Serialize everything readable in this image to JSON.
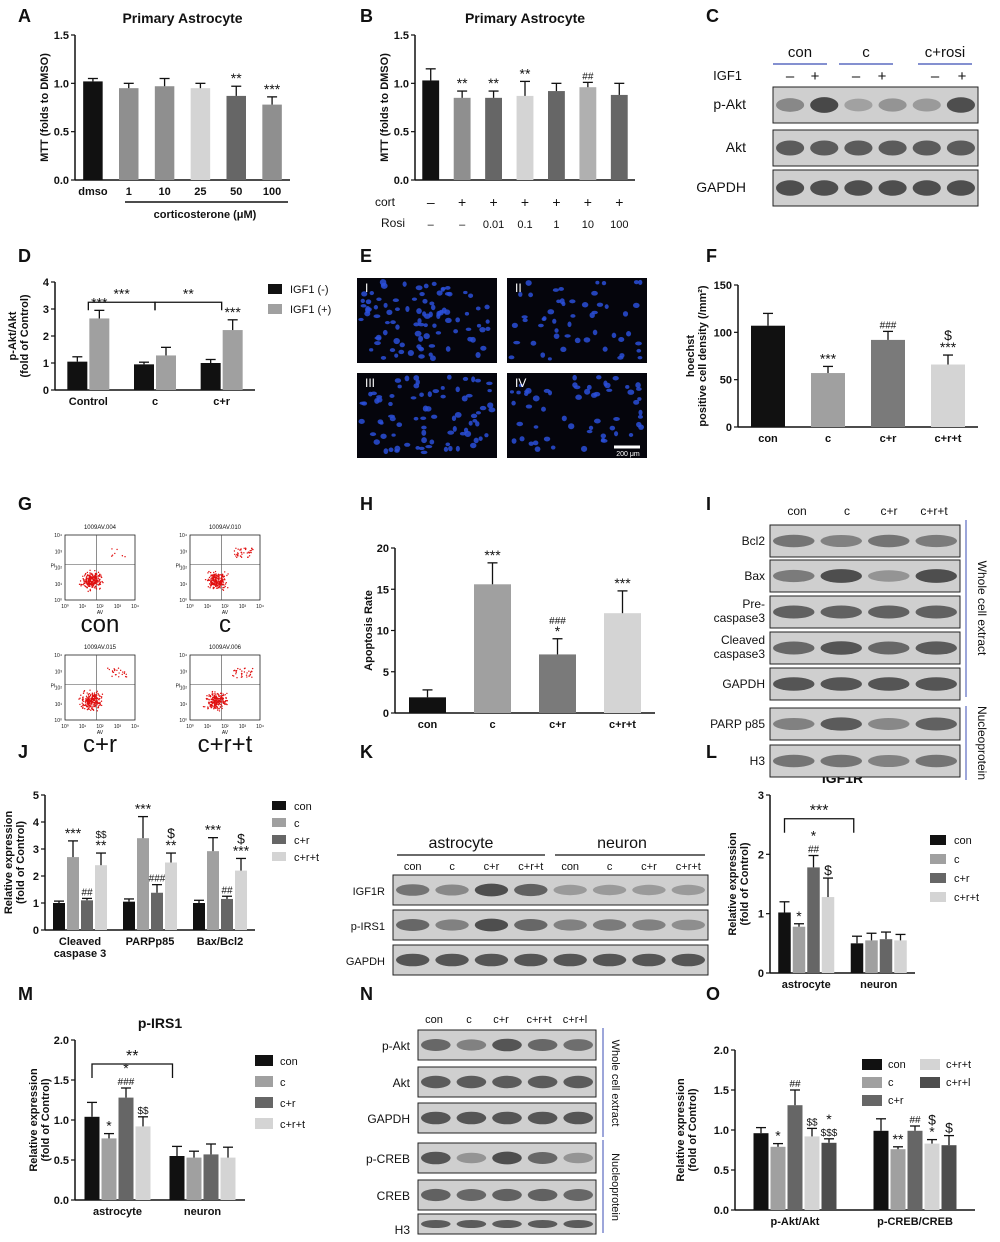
{
  "panels": {
    "A": {
      "label": "A"
    },
    "B": {
      "label": "B"
    },
    "C": {
      "label": "C"
    },
    "D": {
      "label": "D"
    },
    "E": {
      "label": "E"
    },
    "F": {
      "label": "F"
    },
    "G": {
      "label": "G"
    },
    "H": {
      "label": "H"
    },
    "I": {
      "label": "I"
    },
    "J": {
      "label": "J"
    },
    "K": {
      "label": "K"
    },
    "L": {
      "label": "L"
    },
    "M": {
      "label": "M"
    },
    "N": {
      "label": "N"
    },
    "O": {
      "label": "O"
    }
  },
  "colors": {
    "black": "#111111",
    "dgray": "#666666",
    "mgray": "#8f8f8f",
    "lgray": "#d4d4d4",
    "dark2": "#4d4d4d"
  },
  "chart_data": [
    {
      "id": "A",
      "type": "bar",
      "title": "Primary Astrocyte",
      "ylabel": "MTT (folds to DMSO)",
      "xlabel": "corticosterone (μM)",
      "categories": [
        "dmso",
        "1",
        "10",
        "25",
        "50",
        "100"
      ],
      "values": [
        1.02,
        0.95,
        0.97,
        0.95,
        0.87,
        0.78
      ],
      "errors": [
        0.03,
        0.05,
        0.08,
        0.05,
        0.1,
        0.08
      ],
      "colors": [
        "#111111",
        "#8f8f8f",
        "#8f8f8f",
        "#d4d4d4",
        "#666666",
        "#8f8f8f"
      ],
      "sig": [
        "",
        "",
        "",
        "",
        "**",
        "***"
      ],
      "ylim": [
        0,
        1.5
      ],
      "yticks": [
        "0.0",
        "0.5",
        "1.0",
        "1.5"
      ]
    },
    {
      "id": "B",
      "type": "bar",
      "title": "Primary Astrocyte",
      "ylabel": "MTT (folds to DMSO)",
      "categories": [
        "",
        "",
        "",
        "",
        "",
        "",
        ""
      ],
      "row_labels": [
        "cort",
        "Rosi"
      ],
      "cort": [
        "–",
        "+",
        "+",
        "+",
        "+",
        "+",
        "+"
      ],
      "rosi": [
        "–",
        "–",
        "0.01",
        "0.1",
        "1",
        "10",
        "100"
      ],
      "values": [
        1.03,
        0.85,
        0.85,
        0.87,
        0.92,
        0.96,
        0.88
      ],
      "errors": [
        0.12,
        0.07,
        0.07,
        0.15,
        0.08,
        0.05,
        0.12
      ],
      "colors": [
        "#111111",
        "#8f8f8f",
        "#666666",
        "#d4d4d4",
        "#666666",
        "#b0b0b0",
        "#666666"
      ],
      "sig": [
        "",
        "**",
        "**",
        "**",
        "",
        "##",
        ""
      ],
      "ylim": [
        0,
        1.5
      ],
      "yticks": [
        "0.0",
        "0.5",
        "1.0",
        "1.5"
      ]
    },
    {
      "id": "D",
      "type": "bar",
      "ylabel": "p-Akt/Akt\n(fold of Control)",
      "categories": [
        "Control",
        "c",
        "c+r"
      ],
      "series": [
        {
          "name": "IGF1 (-)",
          "color": "#111111",
          "values": [
            1.05,
            0.95,
            1.0
          ],
          "errors": [
            0.18,
            0.08,
            0.13
          ],
          "sig": [
            "",
            "",
            ""
          ]
        },
        {
          "name": "IGF1 (+)",
          "color": "#a0a0a0",
          "values": [
            2.65,
            1.28,
            2.22
          ],
          "errors": [
            0.3,
            0.3,
            0.38
          ],
          "sig": [
            "***",
            "",
            "***"
          ]
        }
      ],
      "brackets": [
        {
          "from": [
            0,
            1
          ],
          "to": [
            1,
            1
          ],
          "label": "***"
        },
        {
          "from": [
            1,
            1
          ],
          "to": [
            2,
            1
          ],
          "label": "**"
        }
      ],
      "ylim": [
        0,
        4
      ],
      "yticks": [
        "0",
        "1",
        "2",
        "3",
        "4"
      ]
    },
    {
      "id": "F",
      "type": "bar",
      "ylabel": "hoechst\npositive cell density (/mm²)",
      "categories": [
        "con",
        "c",
        "c+r",
        "c+r+t"
      ],
      "values": [
        107,
        57,
        92,
        66
      ],
      "errors": [
        13,
        7,
        9,
        10
      ],
      "colors": [
        "#111111",
        "#a0a0a0",
        "#7a7a7a",
        "#d4d4d4"
      ],
      "sig": [
        "",
        "***",
        "###",
        "$\n***"
      ],
      "ylim": [
        0,
        150
      ],
      "yticks": [
        "0",
        "50",
        "100",
        "150"
      ]
    },
    {
      "id": "H",
      "type": "bar",
      "ylabel": "Apoptosis Rate",
      "categories": [
        "con",
        "c",
        "c+r",
        "c+r+t"
      ],
      "values": [
        1.9,
        15.6,
        7.1,
        12.1
      ],
      "errors": [
        0.9,
        2.6,
        1.9,
        2.7
      ],
      "colors": [
        "#111111",
        "#a0a0a0",
        "#7a7a7a",
        "#d4d4d4"
      ],
      "sig": [
        "",
        "***",
        "###\n*",
        "***"
      ],
      "ylim": [
        0,
        20
      ],
      "yticks": [
        "0",
        "5",
        "10",
        "15",
        "20"
      ]
    },
    {
      "id": "J",
      "type": "bar",
      "ylabel": "Relative expression\n(fold of Control)",
      "categories": [
        "Cleaved\ncaspase 3",
        "PARPp85",
        "Bax/Bcl2"
      ],
      "series": [
        {
          "name": "con",
          "color": "#111111",
          "values": [
            1.0,
            1.05,
            1.0
          ],
          "errors": [
            0.07,
            0.1,
            0.1
          ],
          "sig": [
            "",
            "",
            ""
          ]
        },
        {
          "name": "c",
          "color": "#a0a0a0",
          "values": [
            2.7,
            3.4,
            2.92
          ],
          "errors": [
            0.6,
            0.8,
            0.5
          ],
          "sig": [
            "***",
            "***",
            "***"
          ]
        },
        {
          "name": "c+r",
          "color": "#666666",
          "values": [
            1.1,
            1.38,
            1.15
          ],
          "errors": [
            0.07,
            0.3,
            0.1
          ],
          "sig": [
            "##",
            "###",
            "##"
          ]
        },
        {
          "name": "c+r+t",
          "color": "#d4d4d4",
          "values": [
            2.4,
            2.5,
            2.2
          ],
          "errors": [
            0.45,
            0.35,
            0.45
          ],
          "sig": [
            "$$\n**",
            "$\n**",
            "$\n***"
          ]
        }
      ],
      "ylim": [
        0,
        5
      ],
      "yticks": [
        "0",
        "1",
        "2",
        "3",
        "4",
        "5"
      ]
    },
    {
      "id": "L",
      "type": "bar",
      "title": "IGF1R",
      "ylabel": "Relative expression\n(fold of Control)",
      "categories": [
        "astrocyte",
        "neuron"
      ],
      "series": [
        {
          "name": "con",
          "color": "#111111",
          "values": [
            1.02,
            0.5
          ],
          "errors": [
            0.18,
            0.12
          ],
          "sig": [
            "",
            ""
          ]
        },
        {
          "name": "c",
          "color": "#a0a0a0",
          "values": [
            0.78,
            0.55
          ],
          "errors": [
            0.05,
            0.12
          ],
          "sig": [
            "*",
            ""
          ]
        },
        {
          "name": "c+r",
          "color": "#666666",
          "values": [
            1.78,
            0.57
          ],
          "errors": [
            0.2,
            0.12
          ],
          "sig": [
            "*\n##",
            ""
          ]
        },
        {
          "name": "c+r+t",
          "color": "#d4d4d4",
          "values": [
            1.28,
            0.55
          ],
          "errors": [
            0.32,
            0.1
          ],
          "sig": [
            "$",
            ""
          ]
        }
      ],
      "brackets": [
        {
          "label": "***"
        }
      ],
      "ylim": [
        0,
        3
      ],
      "yticks": [
        "0",
        "1",
        "2",
        "3"
      ]
    },
    {
      "id": "M",
      "type": "bar",
      "title": "p-IRS1",
      "ylabel": "Relative expression\n(fold of Control)",
      "categories": [
        "astrocyte",
        "neuron"
      ],
      "series": [
        {
          "name": "con",
          "color": "#111111",
          "values": [
            1.04,
            0.55
          ],
          "errors": [
            0.18,
            0.12
          ],
          "sig": [
            "",
            ""
          ]
        },
        {
          "name": "c",
          "color": "#a0a0a0",
          "values": [
            0.77,
            0.53
          ],
          "errors": [
            0.06,
            0.08
          ],
          "sig": [
            "*",
            ""
          ]
        },
        {
          "name": "c+r",
          "color": "#666666",
          "values": [
            1.28,
            0.57
          ],
          "errors": [
            0.12,
            0.13
          ],
          "sig": [
            "*\n###",
            ""
          ]
        },
        {
          "name": "c+r+t",
          "color": "#d4d4d4",
          "values": [
            0.92,
            0.53
          ],
          "errors": [
            0.12,
            0.13
          ],
          "sig": [
            "$$",
            ""
          ]
        }
      ],
      "brackets": [
        {
          "label": "**"
        }
      ],
      "ylim": [
        0,
        2.0
      ],
      "yticks": [
        "0.0",
        "0.5",
        "1.0",
        "1.5",
        "2.0"
      ]
    },
    {
      "id": "O",
      "type": "bar",
      "ylabel": "Relative expression\n(fold of Control)",
      "categories": [
        "p-Akt/Akt",
        "p-CREB/CREB"
      ],
      "series": [
        {
          "name": "con",
          "color": "#111111",
          "values": [
            0.96,
            0.99
          ],
          "errors": [
            0.07,
            0.15
          ],
          "sig": [
            "",
            ""
          ]
        },
        {
          "name": "c",
          "color": "#a0a0a0",
          "values": [
            0.79,
            0.76
          ],
          "errors": [
            0.04,
            0.03
          ],
          "sig": [
            "*",
            "**"
          ]
        },
        {
          "name": "c+r",
          "color": "#666666",
          "values": [
            1.31,
            0.99
          ],
          "errors": [
            0.19,
            0.06
          ],
          "sig": [
            "##",
            "##"
          ]
        },
        {
          "name": "c+r+t",
          "color": "#d4d4d4",
          "values": [
            0.92,
            0.83
          ],
          "errors": [
            0.1,
            0.05
          ],
          "sig": [
            "$$",
            "$\n*"
          ]
        },
        {
          "name": "c+r+l",
          "color": "#4d4d4d",
          "values": [
            0.84,
            0.81
          ],
          "errors": [
            0.05,
            0.12
          ],
          "sig": [
            "*\n$$$",
            "$"
          ]
        }
      ],
      "ylim": [
        0,
        2.0
      ],
      "yticks": [
        "0.0",
        "0.5",
        "1.0",
        "1.5",
        "2.0"
      ]
    }
  ],
  "blots": {
    "C": {
      "groups": [
        "con",
        "c",
        "c+rosi"
      ],
      "igf_label": "IGF1",
      "signs": [
        "–",
        "+",
        "–",
        "+",
        "–",
        "+"
      ],
      "rows": [
        "p-Akt",
        "Akt",
        "GAPDH"
      ],
      "intensity": [
        [
          0.45,
          0.95,
          0.25,
          0.35,
          0.3,
          0.9
        ],
        [
          0.8,
          0.8,
          0.8,
          0.8,
          0.8,
          0.8
        ],
        [
          0.9,
          0.9,
          0.9,
          0.9,
          0.9,
          0.9
        ]
      ]
    },
    "I": {
      "columns": [
        "con",
        "c",
        "c+r",
        "c+r+t"
      ],
      "rows": [
        "Bcl2",
        "Bax",
        "Pre-\ncaspase3",
        "Cleaved\ncaspase3",
        "GAPDH",
        "PARP p85",
        "H3"
      ],
      "intensity": [
        [
          0.6,
          0.5,
          0.6,
          0.55
        ],
        [
          0.55,
          0.9,
          0.35,
          0.9
        ],
        [
          0.75,
          0.75,
          0.75,
          0.75
        ],
        [
          0.7,
          0.85,
          0.7,
          0.8
        ],
        [
          0.85,
          0.85,
          0.85,
          0.85
        ],
        [
          0.5,
          0.8,
          0.45,
          0.75
        ],
        [
          0.6,
          0.6,
          0.5,
          0.6
        ]
      ],
      "side_labels": [
        "Whole cell extract",
        "Nucleoprotein"
      ]
    },
    "K": {
      "groups": [
        "astrocyte",
        "neuron"
      ],
      "columns": [
        "con",
        "c",
        "c+r",
        "c+r+t",
        "con",
        "c",
        "c+r",
        "c+r+t"
      ],
      "rows": [
        "IGF1R",
        "p-IRS1",
        "GAPDH"
      ],
      "intensity": [
        [
          0.6,
          0.45,
          0.9,
          0.75,
          0.3,
          0.3,
          0.3,
          0.3
        ],
        [
          0.7,
          0.5,
          0.9,
          0.7,
          0.5,
          0.55,
          0.5,
          0.4
        ],
        [
          0.85,
          0.85,
          0.85,
          0.85,
          0.85,
          0.85,
          0.85,
          0.85
        ]
      ]
    },
    "N": {
      "columns": [
        "con",
        "c",
        "c+r",
        "c+r+t",
        "c+r+l"
      ],
      "rows": [
        "p-Akt",
        "Akt",
        "GAPDH",
        "p-CREB",
        "CREB",
        "H3"
      ],
      "intensity": [
        [
          0.7,
          0.5,
          0.85,
          0.7,
          0.65
        ],
        [
          0.8,
          0.8,
          0.8,
          0.8,
          0.8
        ],
        [
          0.85,
          0.85,
          0.85,
          0.85,
          0.85
        ],
        [
          0.85,
          0.35,
          0.9,
          0.7,
          0.35
        ],
        [
          0.75,
          0.7,
          0.75,
          0.75,
          0.7
        ],
        [
          0.8,
          0.8,
          0.8,
          0.8,
          0.8
        ]
      ],
      "side_labels": [
        "Whole cell extract",
        "Nucleoprotein"
      ]
    }
  },
  "micro": {
    "quadrants": [
      "I",
      "II",
      "III",
      "IV"
    ],
    "scalebar": "200 μm",
    "density": [
      1.0,
      0.55,
      0.85,
      0.6
    ]
  },
  "flow": {
    "ids": [
      "1009AV.004",
      "1009AV.010",
      "1009AV.015",
      "1009AV.006"
    ],
    "names": [
      "con",
      "c",
      "c+r",
      "c+r+t"
    ],
    "xlab": "AV",
    "ylab": "PI",
    "ticks": [
      "10⁰",
      "10¹",
      "10²",
      "10³",
      "10⁴"
    ],
    "upper_right_fraction": [
      0.02,
      0.16,
      0.07,
      0.12
    ]
  }
}
